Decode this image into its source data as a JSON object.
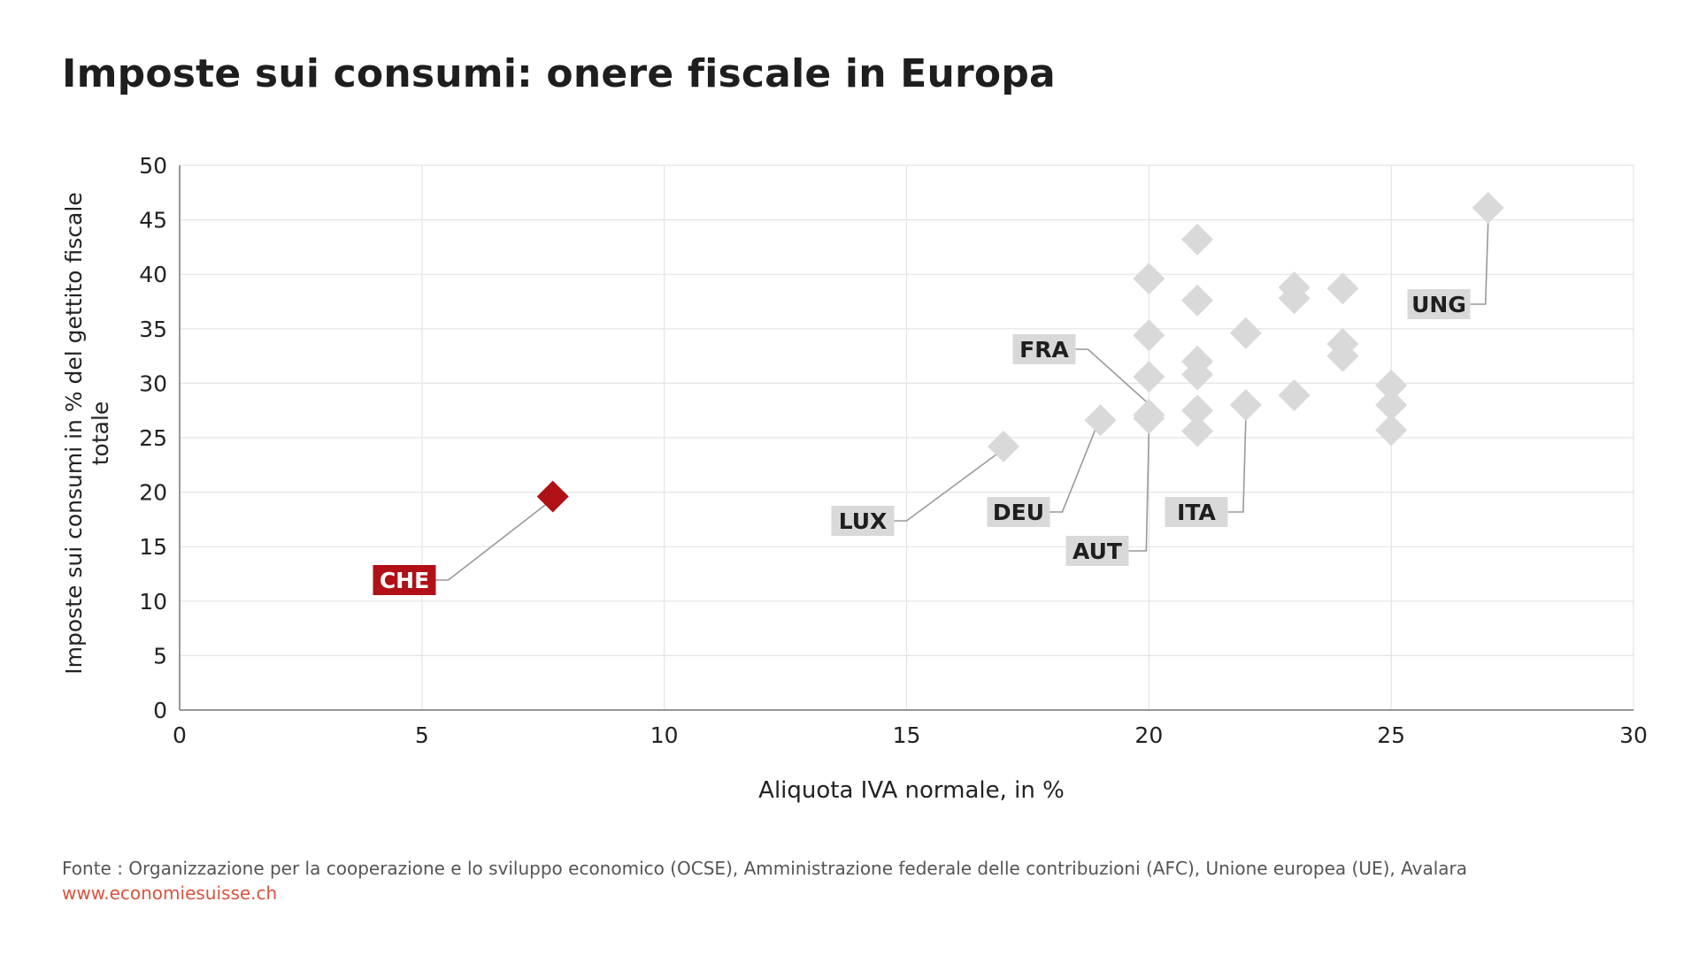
{
  "chart_data": {
    "type": "scatter",
    "title": "Imposte sui consumi: onere fiscale in Europa",
    "xlabel": "Aliquota IVA normale, in %",
    "ylabel": "Imposte sui consumi in % del gettito fiscale totale",
    "xlim": [
      0,
      30
    ],
    "ylim": [
      0,
      50
    ],
    "xticks": [
      0,
      5,
      10,
      15,
      20,
      25,
      30
    ],
    "yticks": [
      0,
      5,
      10,
      15,
      20,
      25,
      30,
      35,
      40,
      45,
      50
    ],
    "grid": true,
    "points": [
      {
        "x": 7.7,
        "y": 19.6,
        "label": "CHE",
        "highlight": true
      },
      {
        "x": 17,
        "y": 24.2,
        "label": "LUX"
      },
      {
        "x": 19,
        "y": 26.6,
        "label": "DEU"
      },
      {
        "x": 20,
        "y": 26.8,
        "label": "AUT"
      },
      {
        "x": 20,
        "y": 27.1,
        "label": "FRA"
      },
      {
        "x": 22,
        "y": 28.0,
        "label": "ITA"
      },
      {
        "x": 27,
        "y": 46.1,
        "label": "UNG"
      },
      {
        "x": 20,
        "y": 39.6
      },
      {
        "x": 20,
        "y": 34.4
      },
      {
        "x": 20,
        "y": 30.6
      },
      {
        "x": 21,
        "y": 43.2
      },
      {
        "x": 21,
        "y": 37.6
      },
      {
        "x": 21,
        "y": 32.0
      },
      {
        "x": 21,
        "y": 30.8
      },
      {
        "x": 21,
        "y": 27.5
      },
      {
        "x": 21,
        "y": 25.6
      },
      {
        "x": 22,
        "y": 34.6
      },
      {
        "x": 23,
        "y": 38.8
      },
      {
        "x": 23,
        "y": 37.8
      },
      {
        "x": 23,
        "y": 28.9
      },
      {
        "x": 24,
        "y": 38.7
      },
      {
        "x": 24,
        "y": 33.6
      },
      {
        "x": 24,
        "y": 32.5
      },
      {
        "x": 25,
        "y": 29.8
      },
      {
        "x": 25,
        "y": 28.0
      },
      {
        "x": 25,
        "y": 25.7
      }
    ]
  },
  "colors": {
    "highlight": "#b01116",
    "point": "#d9d9d9",
    "label_bg": "#d9d9d9",
    "leader_line": "#999999",
    "grid": "#e4e4e4",
    "source_link": "#d9533d"
  },
  "footer": {
    "source": "Fonte : Organizzazione per la cooperazione e lo sviluppo economico (OCSE), Amministrazione federale delle contribuzioni (AFC), Unione europea (UE), Avalara",
    "url": "www.economiesuisse.ch"
  }
}
